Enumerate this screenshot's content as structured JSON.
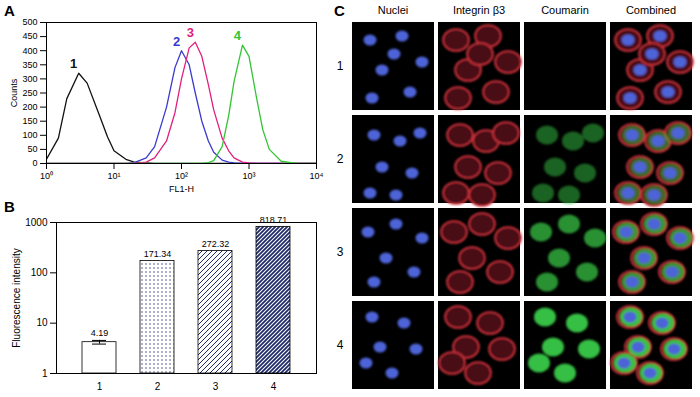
{
  "chart_data": [
    {
      "type": "line",
      "title": "A",
      "x": [
        1,
        1.5,
        2,
        3,
        4,
        6,
        8,
        10,
        15,
        20,
        30,
        40,
        60,
        80,
        100,
        130,
        160,
        200,
        250,
        300,
        400,
        500,
        600,
        800,
        1000,
        1300,
        1600,
        2000,
        3000,
        5000,
        10000
      ],
      "series": [
        {
          "name": "1",
          "color": "#111111",
          "values": [
            15,
            90,
            230,
            320,
            285,
            175,
            95,
            45,
            15,
            5,
            2,
            0,
            0,
            0,
            0,
            0,
            0,
            0,
            0,
            0,
            0,
            0,
            0,
            0,
            0,
            0,
            0,
            0,
            0,
            0,
            0
          ]
        },
        {
          "name": "2",
          "color": "#3a3ad0",
          "values": [
            0,
            0,
            0,
            0,
            0,
            0,
            0,
            0,
            0,
            3,
            20,
            60,
            200,
            340,
            400,
            350,
            250,
            150,
            80,
            40,
            12,
            5,
            2,
            0,
            0,
            0,
            0,
            0,
            0,
            0,
            0
          ]
        },
        {
          "name": "3",
          "color": "#e0207f",
          "values": [
            0,
            0,
            0,
            0,
            0,
            0,
            0,
            0,
            0,
            0,
            5,
            20,
            80,
            180,
            300,
            410,
            430,
            380,
            280,
            190,
            90,
            45,
            20,
            5,
            2,
            0,
            0,
            0,
            0,
            0,
            0
          ]
        },
        {
          "name": "4",
          "color": "#33c433",
          "values": [
            0,
            0,
            0,
            0,
            0,
            0,
            0,
            0,
            0,
            0,
            0,
            0,
            0,
            0,
            0,
            0,
            0,
            0,
            3,
            10,
            60,
            170,
            290,
            420,
            380,
            230,
            120,
            50,
            8,
            0,
            0
          ]
        }
      ],
      "xlim": [
        1,
        10000
      ],
      "xticks": [
        {
          "value": 1,
          "label": "10⁰"
        },
        {
          "value": 10,
          "label": "10¹"
        },
        {
          "value": 100,
          "label": "10²"
        },
        {
          "value": 1000,
          "label": "10³"
        },
        {
          "value": 10000,
          "label": "10⁴"
        }
      ],
      "ylim": [
        0,
        500
      ],
      "yticks": [
        0,
        50,
        100,
        150,
        200,
        250,
        300,
        350,
        400,
        450,
        500
      ],
      "log": "x",
      "x_label": "FL1-H",
      "y_label": "Counts"
    },
    {
      "type": "bar",
      "title": "B",
      "categories": [
        "1",
        "2",
        "3",
        "4"
      ],
      "values": [
        4.19,
        171.34,
        272.32,
        818.71
      ],
      "errors": [
        0.35,
        null,
        null,
        null
      ],
      "colors": [
        "#ffffff",
        "#1f2a6b",
        "#1f2a6b",
        "#1f2a6b"
      ],
      "ylim": [
        1,
        1000
      ],
      "yticks": [
        1,
        10,
        100,
        1000
      ],
      "log": "y",
      "y_label": "Fluorescence intensity",
      "data_labels": true
    }
  ],
  "image_panel": {
    "title": "C",
    "columns": [
      "Nuclei",
      "Integrin β3",
      "Coumarin",
      "Combined"
    ],
    "rows": [
      "1",
      "2",
      "3",
      "4"
    ]
  }
}
